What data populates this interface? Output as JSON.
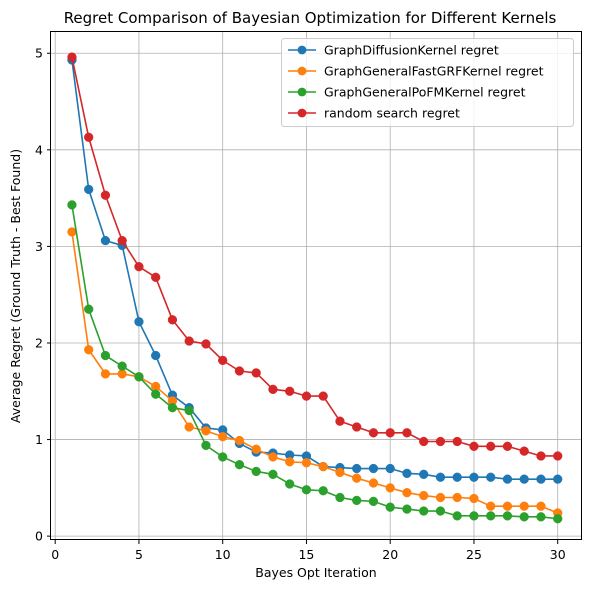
{
  "chart_data": {
    "type": "line",
    "title": "Regret Comparison of Bayesian Optimization for Different Kernels",
    "xlabel": "Bayes Opt Iteration",
    "ylabel": "Average Regret (Ground Truth - Best Found)",
    "xlim": [
      -0.25,
      31.45
    ],
    "ylim": [
      -0.04,
      5.22
    ],
    "xticks": [
      0,
      5,
      10,
      15,
      20,
      25,
      30
    ],
    "yticks": [
      0,
      1,
      2,
      3,
      4,
      5
    ],
    "grid": true,
    "legend_position": "top-right",
    "x": [
      1,
      2,
      3,
      4,
      5,
      6,
      7,
      8,
      9,
      10,
      11,
      12,
      13,
      14,
      15,
      16,
      17,
      18,
      19,
      20,
      21,
      22,
      23,
      24,
      25,
      26,
      27,
      28,
      29,
      30
    ],
    "series": [
      {
        "name": "GraphDiffusionKernel regret",
        "color": "#1f77b4",
        "values": [
          4.93,
          3.59,
          3.06,
          3.01,
          2.22,
          1.87,
          1.46,
          1.33,
          1.12,
          1.1,
          0.96,
          0.87,
          0.86,
          0.84,
          0.83,
          0.72,
          0.71,
          0.7,
          0.7,
          0.7,
          0.65,
          0.64,
          0.61,
          0.61,
          0.61,
          0.61,
          0.59,
          0.59,
          0.59,
          0.59
        ]
      },
      {
        "name": "GraphGeneralFastGRFKernel regret",
        "color": "#ff7f0e",
        "values": [
          3.15,
          1.93,
          1.68,
          1.68,
          1.65,
          1.55,
          1.4,
          1.13,
          1.09,
          1.03,
          0.99,
          0.9,
          0.82,
          0.77,
          0.76,
          0.72,
          0.66,
          0.6,
          0.55,
          0.5,
          0.45,
          0.42,
          0.4,
          0.4,
          0.39,
          0.31,
          0.31,
          0.31,
          0.31,
          0.24
        ]
      },
      {
        "name": "GraphGeneralPoFMKernel regret",
        "color": "#2ca02c",
        "values": [
          3.43,
          2.35,
          1.87,
          1.76,
          1.65,
          1.47,
          1.33,
          1.3,
          0.94,
          0.82,
          0.74,
          0.67,
          0.64,
          0.54,
          0.48,
          0.47,
          0.4,
          0.37,
          0.36,
          0.3,
          0.28,
          0.26,
          0.26,
          0.21,
          0.21,
          0.21,
          0.21,
          0.2,
          0.2,
          0.18
        ]
      },
      {
        "name": "random search regret",
        "color": "#d62728",
        "values": [
          4.96,
          4.13,
          3.53,
          3.06,
          2.79,
          2.68,
          2.24,
          2.02,
          1.99,
          1.82,
          1.71,
          1.69,
          1.52,
          1.5,
          1.45,
          1.45,
          1.19,
          1.13,
          1.07,
          1.07,
          1.07,
          0.98,
          0.98,
          0.98,
          0.93,
          0.93,
          0.93,
          0.88,
          0.83,
          0.83
        ]
      }
    ]
  }
}
